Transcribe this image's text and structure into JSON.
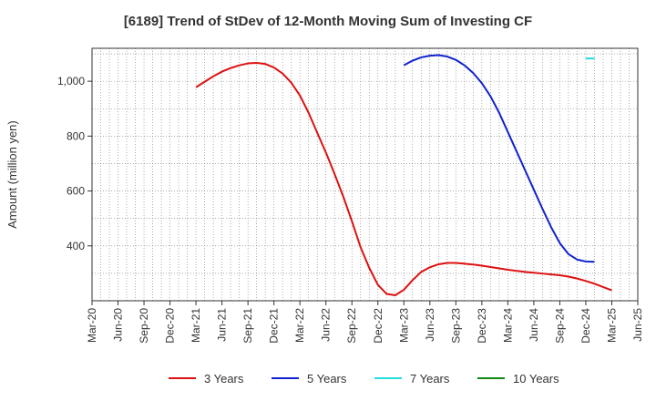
{
  "chart_data": {
    "type": "line",
    "title": "[6189]  Trend of StDev of 12-Month Moving Sum of Investing CF",
    "xlabel": "",
    "ylabel": "Amount (million yen)",
    "ylim": [
      200,
      1120
    ],
    "yticks": [
      400,
      600,
      800,
      1000
    ],
    "ytick_labels": [
      "400",
      "600",
      "800",
      "1,000"
    ],
    "xlim": [
      "2020-03",
      "2025-06"
    ],
    "xticks": [
      "Mar-20",
      "Jun-20",
      "Sep-20",
      "Dec-20",
      "Mar-21",
      "Jun-21",
      "Sep-21",
      "Dec-21",
      "Mar-22",
      "Jun-22",
      "Sep-22",
      "Dec-22",
      "Mar-23",
      "Jun-23",
      "Sep-23",
      "Dec-23",
      "Mar-24",
      "Jun-24",
      "Sep-24",
      "Dec-24",
      "Mar-25",
      "Jun-25"
    ],
    "grid": true,
    "legend_position": "bottom",
    "series": [
      {
        "name": "3 Years",
        "color": "#dd1111",
        "points": [
          [
            "2021-03",
            978
          ],
          [
            "2021-04",
            998
          ],
          [
            "2021-05",
            1018
          ],
          [
            "2021-06",
            1035
          ],
          [
            "2021-07",
            1048
          ],
          [
            "2021-08",
            1058
          ],
          [
            "2021-09",
            1065
          ],
          [
            "2021-10",
            1067
          ],
          [
            "2021-11",
            1063
          ],
          [
            "2021-12",
            1050
          ],
          [
            "2022-01",
            1028
          ],
          [
            "2022-02",
            995
          ],
          [
            "2022-03",
            948
          ],
          [
            "2022-04",
            885
          ],
          [
            "2022-05",
            812
          ],
          [
            "2022-06",
            740
          ],
          [
            "2022-07",
            662
          ],
          [
            "2022-08",
            580
          ],
          [
            "2022-09",
            490
          ],
          [
            "2022-10",
            395
          ],
          [
            "2022-11",
            320
          ],
          [
            "2022-12",
            258
          ],
          [
            "2023-01",
            225
          ],
          [
            "2023-02",
            220
          ],
          [
            "2023-03",
            240
          ],
          [
            "2023-04",
            275
          ],
          [
            "2023-05",
            305
          ],
          [
            "2023-06",
            322
          ],
          [
            "2023-07",
            333
          ],
          [
            "2023-08",
            338
          ],
          [
            "2023-09",
            338
          ],
          [
            "2023-10",
            335
          ],
          [
            "2023-11",
            332
          ],
          [
            "2023-12",
            328
          ],
          [
            "2024-01",
            323
          ],
          [
            "2024-02",
            318
          ],
          [
            "2024-03",
            313
          ],
          [
            "2024-04",
            309
          ],
          [
            "2024-05",
            305
          ],
          [
            "2024-06",
            302
          ],
          [
            "2024-07",
            299
          ],
          [
            "2024-08",
            296
          ],
          [
            "2024-09",
            293
          ],
          [
            "2024-10",
            288
          ],
          [
            "2024-11",
            281
          ],
          [
            "2024-12",
            272
          ],
          [
            "2025-01",
            262
          ],
          [
            "2025-02",
            250
          ],
          [
            "2025-03",
            238
          ]
        ]
      },
      {
        "name": "5 Years",
        "color": "#1122cc",
        "points": [
          [
            "2023-03",
            1058
          ],
          [
            "2023-04",
            1075
          ],
          [
            "2023-05",
            1087
          ],
          [
            "2023-06",
            1093
          ],
          [
            "2023-07",
            1095
          ],
          [
            "2023-08",
            1090
          ],
          [
            "2023-09",
            1078
          ],
          [
            "2023-10",
            1058
          ],
          [
            "2023-11",
            1030
          ],
          [
            "2023-12",
            993
          ],
          [
            "2024-01",
            945
          ],
          [
            "2024-02",
            885
          ],
          [
            "2024-03",
            815
          ],
          [
            "2024-04",
            745
          ],
          [
            "2024-05",
            675
          ],
          [
            "2024-06",
            605
          ],
          [
            "2024-07",
            535
          ],
          [
            "2024-08",
            468
          ],
          [
            "2024-09",
            410
          ],
          [
            "2024-10",
            370
          ],
          [
            "2024-11",
            350
          ],
          [
            "2024-12",
            343
          ],
          [
            "2025-01",
            342
          ]
        ]
      },
      {
        "name": "7 Years",
        "color": "#22dddd",
        "points": [
          [
            "2024-12",
            1083
          ],
          [
            "2025-01",
            1083
          ]
        ]
      },
      {
        "name": "10 Years",
        "color": "#118811",
        "points": []
      }
    ]
  }
}
